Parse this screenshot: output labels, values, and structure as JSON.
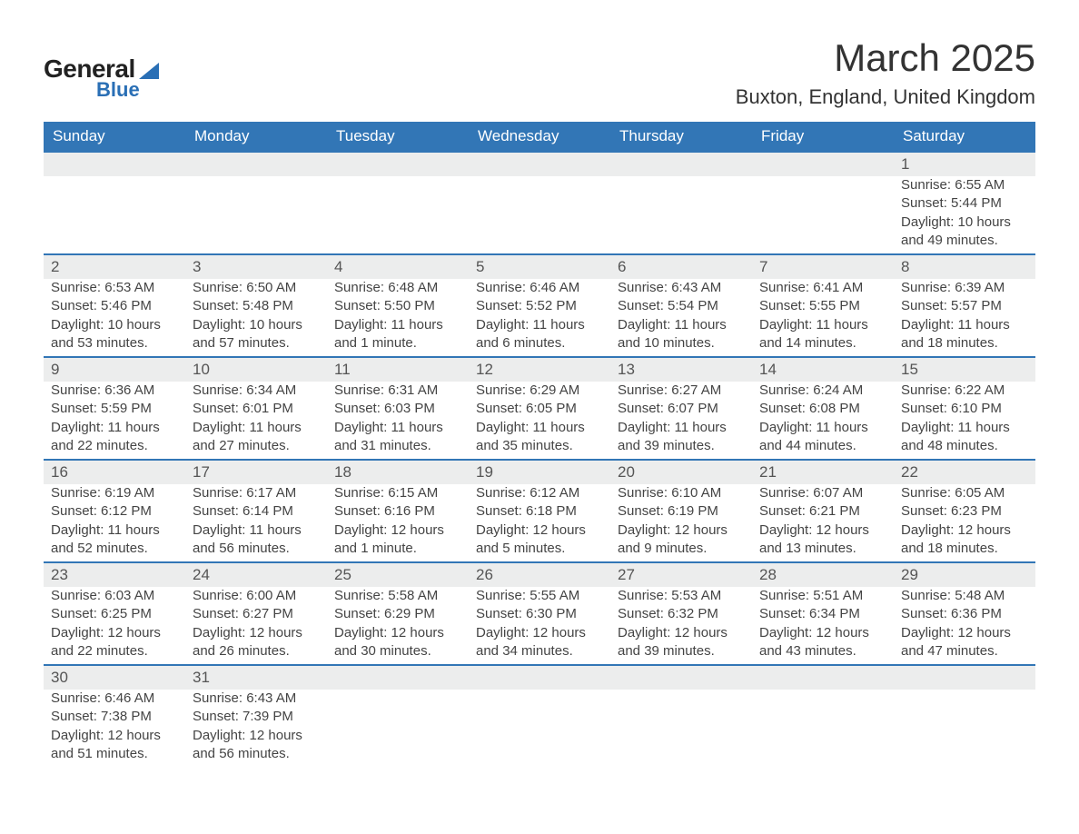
{
  "brand": {
    "word1": "General",
    "word2": "Blue",
    "accent_color": "#2a6fb5"
  },
  "title": "March 2025",
  "subtitle": "Buxton, England, United Kingdom",
  "colors": {
    "header_bg": "#3276b6",
    "header_text": "#ffffff",
    "daynum_bg": "#eceded",
    "border": "#3276b6",
    "text": "#444444",
    "page_bg": "#ffffff"
  },
  "fonts": {
    "title_size": 42,
    "subtitle_size": 22,
    "head_size": 17,
    "body_size": 15
  },
  "day_headers": [
    "Sunday",
    "Monday",
    "Tuesday",
    "Wednesday",
    "Thursday",
    "Friday",
    "Saturday"
  ],
  "weeks": [
    [
      null,
      null,
      null,
      null,
      null,
      null,
      {
        "d": "1",
        "sr": "Sunrise: 6:55 AM",
        "ss": "Sunset: 5:44 PM",
        "dl": "Daylight: 10 hours and 49 minutes."
      }
    ],
    [
      {
        "d": "2",
        "sr": "Sunrise: 6:53 AM",
        "ss": "Sunset: 5:46 PM",
        "dl": "Daylight: 10 hours and 53 minutes."
      },
      {
        "d": "3",
        "sr": "Sunrise: 6:50 AM",
        "ss": "Sunset: 5:48 PM",
        "dl": "Daylight: 10 hours and 57 minutes."
      },
      {
        "d": "4",
        "sr": "Sunrise: 6:48 AM",
        "ss": "Sunset: 5:50 PM",
        "dl": "Daylight: 11 hours and 1 minute."
      },
      {
        "d": "5",
        "sr": "Sunrise: 6:46 AM",
        "ss": "Sunset: 5:52 PM",
        "dl": "Daylight: 11 hours and 6 minutes."
      },
      {
        "d": "6",
        "sr": "Sunrise: 6:43 AM",
        "ss": "Sunset: 5:54 PM",
        "dl": "Daylight: 11 hours and 10 minutes."
      },
      {
        "d": "7",
        "sr": "Sunrise: 6:41 AM",
        "ss": "Sunset: 5:55 PM",
        "dl": "Daylight: 11 hours and 14 minutes."
      },
      {
        "d": "8",
        "sr": "Sunrise: 6:39 AM",
        "ss": "Sunset: 5:57 PM",
        "dl": "Daylight: 11 hours and 18 minutes."
      }
    ],
    [
      {
        "d": "9",
        "sr": "Sunrise: 6:36 AM",
        "ss": "Sunset: 5:59 PM",
        "dl": "Daylight: 11 hours and 22 minutes."
      },
      {
        "d": "10",
        "sr": "Sunrise: 6:34 AM",
        "ss": "Sunset: 6:01 PM",
        "dl": "Daylight: 11 hours and 27 minutes."
      },
      {
        "d": "11",
        "sr": "Sunrise: 6:31 AM",
        "ss": "Sunset: 6:03 PM",
        "dl": "Daylight: 11 hours and 31 minutes."
      },
      {
        "d": "12",
        "sr": "Sunrise: 6:29 AM",
        "ss": "Sunset: 6:05 PM",
        "dl": "Daylight: 11 hours and 35 minutes."
      },
      {
        "d": "13",
        "sr": "Sunrise: 6:27 AM",
        "ss": "Sunset: 6:07 PM",
        "dl": "Daylight: 11 hours and 39 minutes."
      },
      {
        "d": "14",
        "sr": "Sunrise: 6:24 AM",
        "ss": "Sunset: 6:08 PM",
        "dl": "Daylight: 11 hours and 44 minutes."
      },
      {
        "d": "15",
        "sr": "Sunrise: 6:22 AM",
        "ss": "Sunset: 6:10 PM",
        "dl": "Daylight: 11 hours and 48 minutes."
      }
    ],
    [
      {
        "d": "16",
        "sr": "Sunrise: 6:19 AM",
        "ss": "Sunset: 6:12 PM",
        "dl": "Daylight: 11 hours and 52 minutes."
      },
      {
        "d": "17",
        "sr": "Sunrise: 6:17 AM",
        "ss": "Sunset: 6:14 PM",
        "dl": "Daylight: 11 hours and 56 minutes."
      },
      {
        "d": "18",
        "sr": "Sunrise: 6:15 AM",
        "ss": "Sunset: 6:16 PM",
        "dl": "Daylight: 12 hours and 1 minute."
      },
      {
        "d": "19",
        "sr": "Sunrise: 6:12 AM",
        "ss": "Sunset: 6:18 PM",
        "dl": "Daylight: 12 hours and 5 minutes."
      },
      {
        "d": "20",
        "sr": "Sunrise: 6:10 AM",
        "ss": "Sunset: 6:19 PM",
        "dl": "Daylight: 12 hours and 9 minutes."
      },
      {
        "d": "21",
        "sr": "Sunrise: 6:07 AM",
        "ss": "Sunset: 6:21 PM",
        "dl": "Daylight: 12 hours and 13 minutes."
      },
      {
        "d": "22",
        "sr": "Sunrise: 6:05 AM",
        "ss": "Sunset: 6:23 PM",
        "dl": "Daylight: 12 hours and 18 minutes."
      }
    ],
    [
      {
        "d": "23",
        "sr": "Sunrise: 6:03 AM",
        "ss": "Sunset: 6:25 PM",
        "dl": "Daylight: 12 hours and 22 minutes."
      },
      {
        "d": "24",
        "sr": "Sunrise: 6:00 AM",
        "ss": "Sunset: 6:27 PM",
        "dl": "Daylight: 12 hours and 26 minutes."
      },
      {
        "d": "25",
        "sr": "Sunrise: 5:58 AM",
        "ss": "Sunset: 6:29 PM",
        "dl": "Daylight: 12 hours and 30 minutes."
      },
      {
        "d": "26",
        "sr": "Sunrise: 5:55 AM",
        "ss": "Sunset: 6:30 PM",
        "dl": "Daylight: 12 hours and 34 minutes."
      },
      {
        "d": "27",
        "sr": "Sunrise: 5:53 AM",
        "ss": "Sunset: 6:32 PM",
        "dl": "Daylight: 12 hours and 39 minutes."
      },
      {
        "d": "28",
        "sr": "Sunrise: 5:51 AM",
        "ss": "Sunset: 6:34 PM",
        "dl": "Daylight: 12 hours and 43 minutes."
      },
      {
        "d": "29",
        "sr": "Sunrise: 5:48 AM",
        "ss": "Sunset: 6:36 PM",
        "dl": "Daylight: 12 hours and 47 minutes."
      }
    ],
    [
      {
        "d": "30",
        "sr": "Sunrise: 6:46 AM",
        "ss": "Sunset: 7:38 PM",
        "dl": "Daylight: 12 hours and 51 minutes."
      },
      {
        "d": "31",
        "sr": "Sunrise: 6:43 AM",
        "ss": "Sunset: 7:39 PM",
        "dl": "Daylight: 12 hours and 56 minutes."
      },
      null,
      null,
      null,
      null,
      null
    ]
  ]
}
